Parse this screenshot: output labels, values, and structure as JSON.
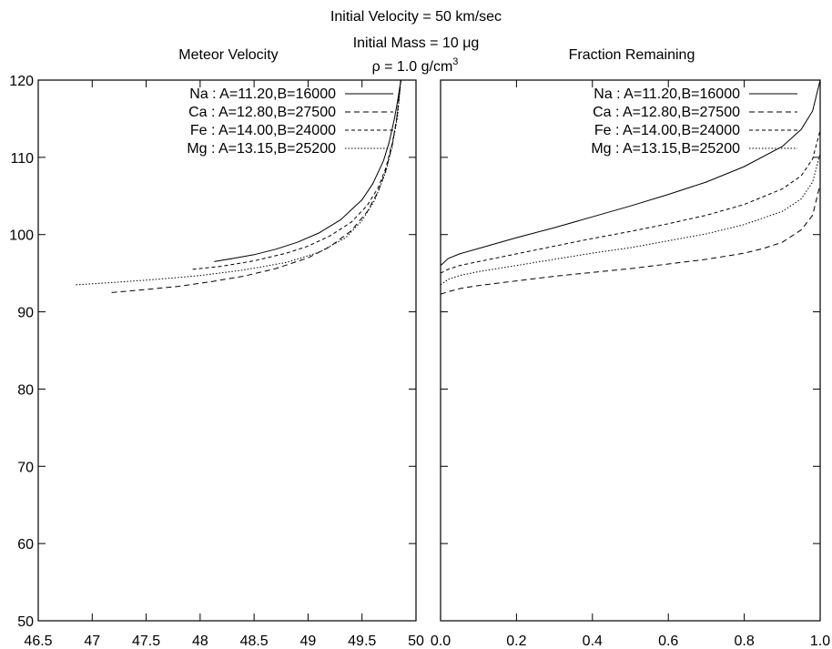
{
  "header": {
    "line1": "Initial Velocity = 50 km/sec",
    "line2_prefix": "Initial Mass = 10 ",
    "line2_unit": "μg",
    "line3_rho": "ρ",
    "line3_value": " = 1.0 g/cm",
    "line3_exp": "3"
  },
  "chart_data": [
    {
      "type": "line",
      "title": "Meteor Velocity",
      "xlabel": "",
      "ylabel": "",
      "xlim": [
        46.5,
        50
      ],
      "ylim": [
        50,
        120
      ],
      "xticks": [
        "46.5",
        "47",
        "47.5",
        "48",
        "48.5",
        "49",
        "49.5",
        "50"
      ],
      "yticks": [
        "50",
        "60",
        "70",
        "80",
        "90",
        "100",
        "110",
        "120"
      ],
      "grid": false,
      "legend_position": "top-right",
      "series": [
        {
          "name": "Na : A=11.20,B=16000",
          "dash": "solid",
          "x": [
            48.13,
            48.3,
            48.5,
            48.7,
            48.9,
            49.1,
            49.3,
            49.5,
            49.6,
            49.7,
            49.75,
            49.8,
            49.83,
            49.86
          ],
          "y": [
            96.5,
            96.9,
            97.4,
            98.1,
            99.0,
            100.2,
            101.9,
            104.5,
            106.6,
            109.6,
            111.9,
            115.0,
            117.3,
            120.0
          ]
        },
        {
          "name": "Ca : A=12.80,B=27500",
          "dash": "6,4",
          "x": [
            47.18,
            47.5,
            47.8,
            48.1,
            48.4,
            48.7,
            49.0,
            49.2,
            49.4,
            49.55,
            49.65,
            49.72,
            49.78,
            49.82,
            49.86
          ],
          "y": [
            92.5,
            92.9,
            93.3,
            93.9,
            94.6,
            95.6,
            97.0,
            98.4,
            100.5,
            103.0,
            105.6,
            108.3,
            111.6,
            114.9,
            120.0
          ]
        },
        {
          "name": "Fe : A=14.00,B=24000",
          "dash": "4,3",
          "x": [
            47.93,
            48.2,
            48.5,
            48.8,
            49.0,
            49.2,
            49.4,
            49.55,
            49.65,
            49.72,
            49.78,
            49.82,
            49.86
          ],
          "y": [
            95.5,
            95.9,
            96.6,
            97.6,
            98.5,
            99.8,
            101.6,
            103.8,
            106.1,
            108.6,
            111.8,
            114.9,
            120.0
          ]
        },
        {
          "name": "Mg : A=13.15,B=25200",
          "dash": "1.5,2",
          "x": [
            46.85,
            47.2,
            47.6,
            48.0,
            48.4,
            48.8,
            49.1,
            49.35,
            49.5,
            49.62,
            49.72,
            49.78,
            49.83,
            49.86
          ],
          "y": [
            93.5,
            93.8,
            94.2,
            94.7,
            95.4,
            96.4,
            97.7,
            99.6,
            101.8,
            104.5,
            108.1,
            111.5,
            115.3,
            120.0
          ]
        }
      ]
    },
    {
      "type": "line",
      "title": "Fraction Remaining",
      "xlabel": "",
      "ylabel": "",
      "xlim": [
        0,
        1
      ],
      "ylim": [
        50,
        120
      ],
      "xticks": [
        "0.0",
        "0.2",
        "0.4",
        "0.6",
        "0.8",
        "1.0"
      ],
      "yticks": [
        "50",
        "60",
        "70",
        "80",
        "90",
        "100",
        "110",
        "120"
      ],
      "grid": false,
      "legend_position": "top-right",
      "series": [
        {
          "name": "Na : A=11.20,B=16000",
          "dash": "solid",
          "x": [
            0.0,
            0.02,
            0.05,
            0.1,
            0.2,
            0.3,
            0.4,
            0.5,
            0.6,
            0.7,
            0.8,
            0.9,
            0.95,
            0.98,
            1.0
          ],
          "y": [
            96.0,
            96.9,
            97.5,
            98.2,
            99.6,
            100.9,
            102.3,
            103.7,
            105.2,
            106.8,
            108.8,
            111.4,
            113.6,
            116.0,
            120.0
          ]
        },
        {
          "name": "Ca : A=12.80,B=27500",
          "dash": "6,4",
          "x": [
            0.0,
            0.02,
            0.05,
            0.1,
            0.2,
            0.3,
            0.4,
            0.5,
            0.6,
            0.7,
            0.8,
            0.85,
            0.9,
            0.95,
            0.98,
            1.0
          ],
          "y": [
            92.3,
            92.6,
            93.0,
            93.4,
            94.0,
            94.6,
            95.1,
            95.6,
            96.2,
            96.8,
            97.6,
            98.2,
            99.0,
            100.6,
            102.5,
            106.5
          ]
        },
        {
          "name": "Fe : A=14.00,B=24000",
          "dash": "4,3",
          "x": [
            0.0,
            0.02,
            0.05,
            0.1,
            0.2,
            0.3,
            0.4,
            0.5,
            0.6,
            0.7,
            0.8,
            0.9,
            0.95,
            0.98,
            1.0
          ],
          "y": [
            95.0,
            95.5,
            96.0,
            96.5,
            97.5,
            98.5,
            99.5,
            100.4,
            101.4,
            102.5,
            103.9,
            105.9,
            107.6,
            109.8,
            113.5
          ]
        },
        {
          "name": "Mg : A=13.15,B=25200",
          "dash": "1.5,2",
          "x": [
            0.0,
            0.02,
            0.05,
            0.1,
            0.2,
            0.3,
            0.4,
            0.5,
            0.6,
            0.7,
            0.8,
            0.9,
            0.95,
            0.98,
            1.0
          ],
          "y": [
            93.5,
            94.2,
            94.7,
            95.2,
            96.0,
            96.8,
            97.6,
            98.3,
            99.2,
            100.1,
            101.3,
            103.0,
            104.6,
            106.8,
            110.5
          ]
        }
      ]
    }
  ]
}
